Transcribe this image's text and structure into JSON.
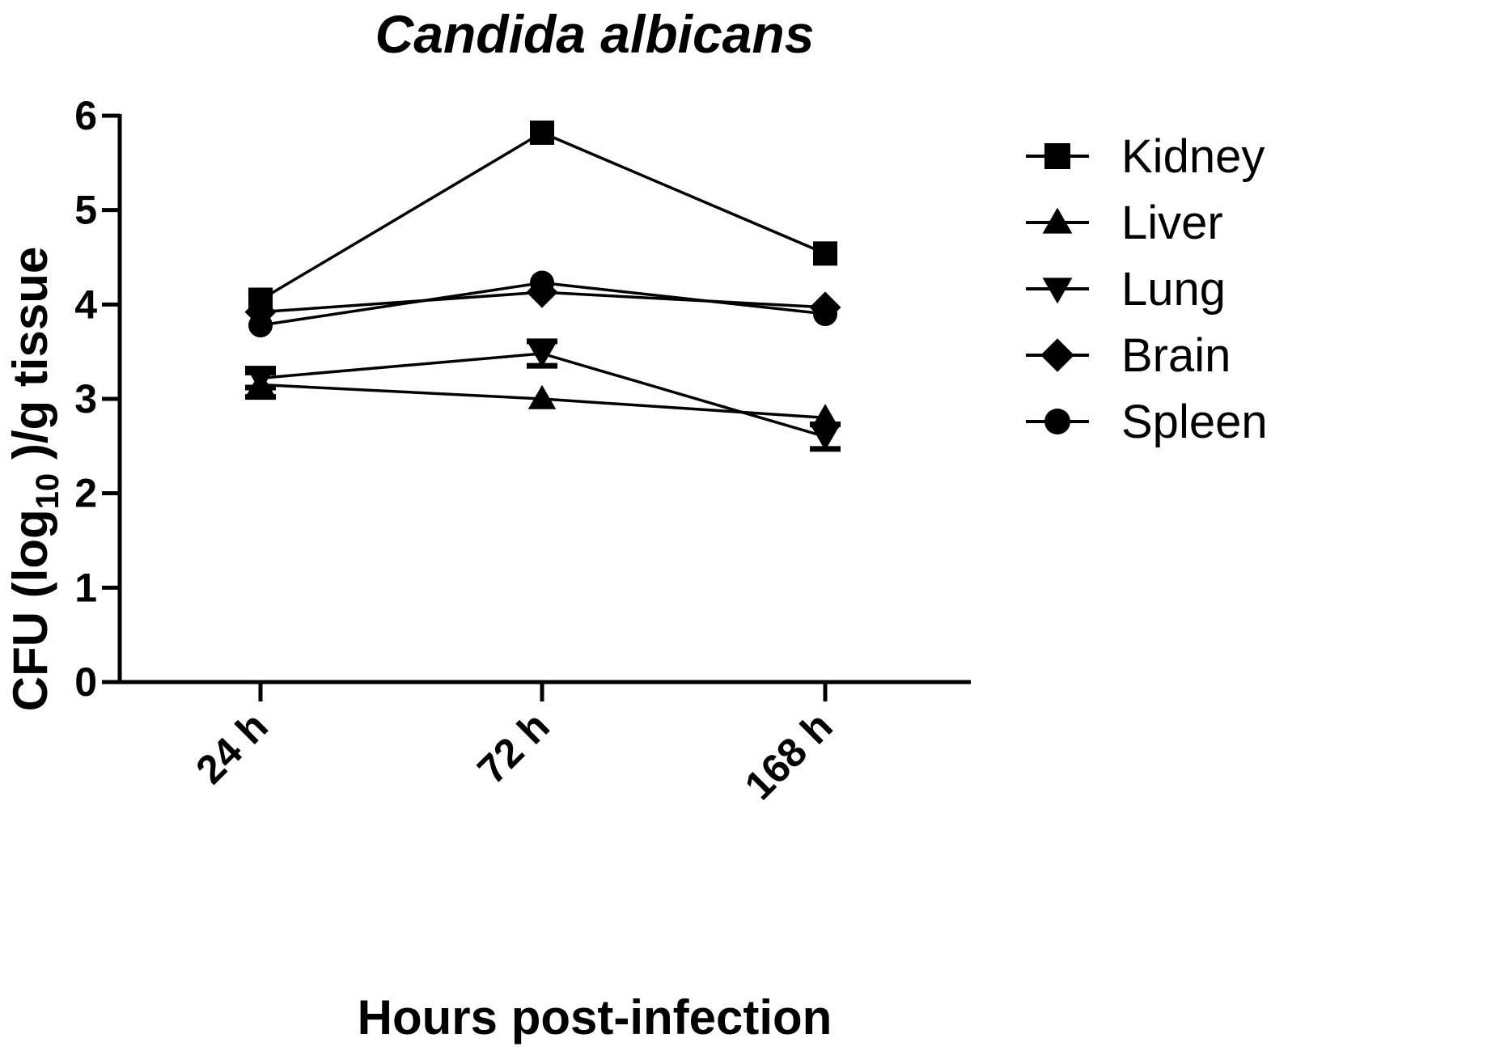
{
  "chart_data": {
    "type": "line",
    "title": "Candida albicans",
    "xlabel": "Hours post-infection",
    "ylabel": "CFU (log10 )/g tissue",
    "ylabel_parts": {
      "before": "CFU (log",
      "subscript": "10",
      "after": " )/g tissue"
    },
    "categories": [
      "24 h",
      "72 h",
      "168 h"
    ],
    "ylim": [
      0,
      6
    ],
    "yticks": [
      0,
      1,
      2,
      3,
      4,
      5,
      6
    ],
    "grid": false,
    "legend_position": "right",
    "series": [
      {
        "name": "Kidney",
        "marker": "square",
        "values": [
          4.05,
          5.82,
          4.54
        ],
        "errors": [
          0.0,
          0.0,
          0.0
        ]
      },
      {
        "name": "Liver",
        "marker": "triangle-up",
        "values": [
          3.15,
          3.0,
          2.8
        ],
        "errors": [
          0.13,
          0.0,
          0.0
        ]
      },
      {
        "name": "Lung",
        "marker": "triangle-down",
        "values": [
          3.22,
          3.48,
          2.6
        ],
        "errors": [
          0.1,
          0.13,
          0.13
        ]
      },
      {
        "name": "Brain",
        "marker": "diamond",
        "values": [
          3.92,
          4.13,
          3.97
        ],
        "errors": [
          0.0,
          0.0,
          0.0
        ]
      },
      {
        "name": "Spleen",
        "marker": "circle",
        "values": [
          3.78,
          4.23,
          3.9
        ],
        "errors": [
          0.0,
          0.0,
          0.0
        ]
      }
    ]
  }
}
